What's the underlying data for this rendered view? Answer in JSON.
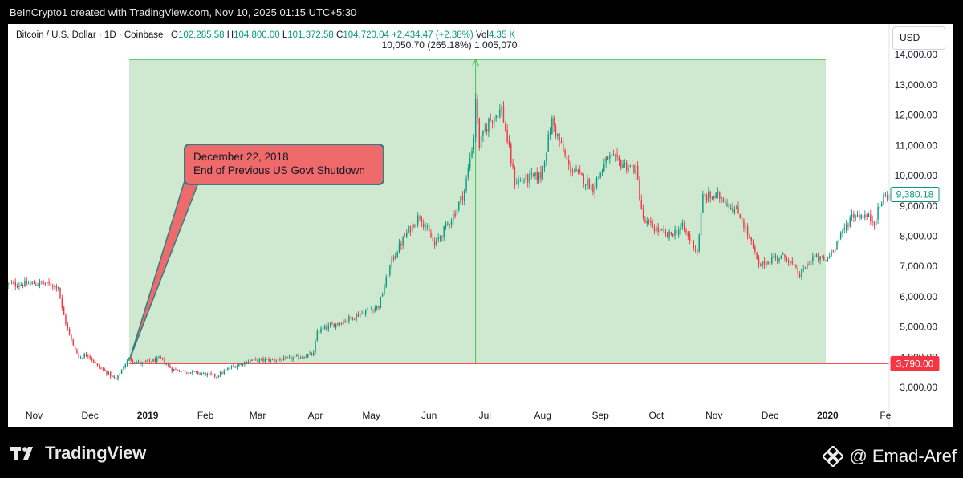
{
  "caption": "BeInCrypto1 created with TradingView.com, Nov 10, 2025 01:15 UTC+5:30",
  "header": {
    "symbol": "Bitcoin / U.S. Dollar · 1D · Coinbase",
    "o_label": "O",
    "o_value": "102,285.58",
    "h_label": "H",
    "h_value": "104,800.00",
    "l_label": "L",
    "l_value": "101,372.58",
    "c_label": "C",
    "c_value": "104,720.04",
    "change": "+2,434.47 (+2.38%)",
    "vol_label": "Vol",
    "vol_value": "4.35 K"
  },
  "currency": "USD",
  "measure_label": "10,050.70 (265.18%) 1,005,070",
  "callout": {
    "line1": "December 22, 2018",
    "line2": "End of Previous US Govt Shutdown"
  },
  "price_tags": {
    "current": "9,380.18",
    "base": "3,790.00"
  },
  "footer": {
    "brand": "TradingView",
    "credit": "Emad-Aref"
  },
  "colors": {
    "up": "#089981",
    "down": "#f23645",
    "range_fill": "#cfe9d1",
    "range_line": "#42c44c",
    "base_line": "#f23645"
  },
  "chart_data": {
    "type": "candlestick",
    "yaxis": {
      "ticks": [
        "3,000.00",
        "4,000.00",
        "5,000.00",
        "6,000.00",
        "7,000.00",
        "8,000.00",
        "9,000.00",
        "10,000.00",
        "11,000.00",
        "12,000.00",
        "13,000.00",
        "14,000.00"
      ],
      "min": 2500,
      "max": 14800
    },
    "xaxis": {
      "ticks": [
        {
          "label": "Nov",
          "date": "2018-11-01"
        },
        {
          "label": "Dec",
          "date": "2018-12-01"
        },
        {
          "label": "2019",
          "date": "2019-01-01"
        },
        {
          "label": "Feb",
          "date": "2019-02-01"
        },
        {
          "label": "Mar",
          "date": "2019-03-01"
        },
        {
          "label": "Apr",
          "date": "2019-04-01"
        },
        {
          "label": "May",
          "date": "2019-05-01"
        },
        {
          "label": "Jun",
          "date": "2019-06-01"
        },
        {
          "label": "Jul",
          "date": "2019-07-01"
        },
        {
          "label": "Aug",
          "date": "2019-08-01"
        },
        {
          "label": "Sep",
          "date": "2019-09-01"
        },
        {
          "label": "Oct",
          "date": "2019-10-01"
        },
        {
          "label": "Nov",
          "date": "2019-11-01"
        },
        {
          "label": "Dec",
          "date": "2019-12-01"
        },
        {
          "label": "2020",
          "date": "2020-01-01"
        },
        {
          "label": "Fe",
          "date": "2020-02-01"
        }
      ],
      "start": "2018-10-18",
      "end": "2020-02-03"
    },
    "range_box": {
      "start": "2018-12-22",
      "end": "2019-12-31",
      "low": 3790,
      "high": 13840,
      "peak_date": "2019-06-26"
    },
    "base_price": 3790,
    "current_price": 9380.18,
    "price_path": [
      [
        "2018-10-18",
        6400
      ],
      [
        "2018-11-05",
        6450
      ],
      [
        "2018-11-14",
        6350
      ],
      [
        "2018-11-16",
        5600
      ],
      [
        "2018-11-20",
        4700
      ],
      [
        "2018-11-25",
        4000
      ],
      [
        "2018-11-30",
        4100
      ],
      [
        "2018-12-05",
        3700
      ],
      [
        "2018-12-10",
        3500
      ],
      [
        "2018-12-15",
        3250
      ],
      [
        "2018-12-19",
        3700
      ],
      [
        "2018-12-22",
        3950
      ],
      [
        "2018-12-28",
        3800
      ],
      [
        "2019-01-08",
        3950
      ],
      [
        "2019-01-14",
        3600
      ],
      [
        "2019-01-31",
        3450
      ],
      [
        "2019-02-07",
        3380
      ],
      [
        "2019-02-14",
        3650
      ],
      [
        "2019-02-25",
        3900
      ],
      [
        "2019-03-15",
        3920
      ],
      [
        "2019-03-31",
        4100
      ],
      [
        "2019-04-02",
        4850
      ],
      [
        "2019-04-20",
        5300
      ],
      [
        "2019-05-05",
        5700
      ],
      [
        "2019-05-12",
        7200
      ],
      [
        "2019-05-20",
        8100
      ],
      [
        "2019-05-27",
        8700
      ],
      [
        "2019-06-04",
        7700
      ],
      [
        "2019-06-15",
        8800
      ],
      [
        "2019-06-20",
        9500
      ],
      [
        "2019-06-25",
        11300
      ],
      [
        "2019-06-26",
        12600
      ],
      [
        "2019-06-28",
        11000
      ],
      [
        "2019-07-03",
        11800
      ],
      [
        "2019-07-10",
        12200
      ],
      [
        "2019-07-17",
        9800
      ],
      [
        "2019-07-31",
        10000
      ],
      [
        "2019-08-06",
        11800
      ],
      [
        "2019-08-15",
        10300
      ],
      [
        "2019-08-28",
        9600
      ],
      [
        "2019-09-05",
        10600
      ],
      [
        "2019-09-20",
        10200
      ],
      [
        "2019-09-24",
        8500
      ],
      [
        "2019-10-07",
        8000
      ],
      [
        "2019-10-15",
        8300
      ],
      [
        "2019-10-23",
        7500
      ],
      [
        "2019-10-26",
        9300
      ],
      [
        "2019-11-05",
        9300
      ],
      [
        "2019-11-15",
        8700
      ],
      [
        "2019-11-22",
        7600
      ],
      [
        "2019-11-25",
        7000
      ],
      [
        "2019-12-03",
        7300
      ],
      [
        "2019-12-10",
        7300
      ],
      [
        "2019-12-17",
        6700
      ],
      [
        "2019-12-24",
        7300
      ],
      [
        "2019-12-31",
        7200
      ],
      [
        "2020-01-07",
        7900
      ],
      [
        "2020-01-14",
        8700
      ],
      [
        "2020-01-20",
        8700
      ],
      [
        "2020-01-26",
        8500
      ],
      [
        "2020-01-31",
        9300
      ],
      [
        "2020-02-03",
        9380
      ]
    ]
  }
}
